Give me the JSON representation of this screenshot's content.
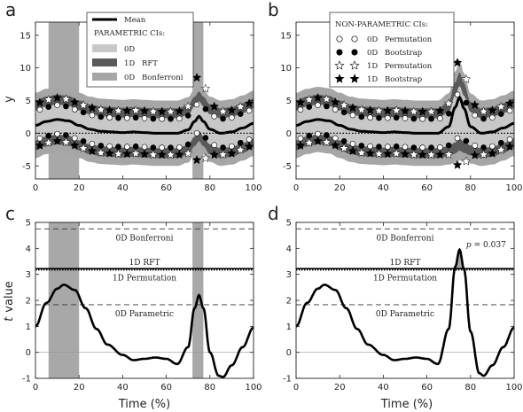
{
  "panels": {
    "a": "a",
    "b": "b",
    "c": "c",
    "d": "d"
  },
  "axes": {
    "top_ylabel": "y",
    "bottom_ylabel_t": "t",
    "bottom_ylabel_rest": "value",
    "xlabel": "Time (%)"
  },
  "legend_a": {
    "mean": "Mean",
    "header": "PARAMETRIC CIs:",
    "items": [
      {
        "tag": "0D",
        "label": ""
      },
      {
        "tag": "1D",
        "label": "RFT"
      },
      {
        "tag": "0D",
        "label": "Bonferroni"
      }
    ]
  },
  "legend_b": {
    "header": "NON-PARAMETRIC CIs:",
    "items": [
      {
        "tag": "0D",
        "label": "Permutation"
      },
      {
        "tag": "0D",
        "label": "Bootstrap"
      },
      {
        "tag": "1D",
        "label": "Permutation"
      },
      {
        "tag": "1D",
        "label": "Bootstrap"
      }
    ]
  },
  "annotations_c": {
    "bonferroni": "0D Bonferroni",
    "rft": "1D RFT",
    "permutation": "1D Permutation",
    "parametric": "0D Parametric"
  },
  "annotations_d": {
    "bonferroni": "0D Bonferroni",
    "rft": "1D RFT",
    "permutation": "1D Permutation",
    "parametric": "0D Parametric",
    "p_label": "p",
    "p_value": "= 0.037"
  },
  "colors": {
    "band_light": "#c8c8c8",
    "band_dark": "#5a5a5a",
    "band_mid": "#a6a6a6",
    "curve": "#000000",
    "shade": "#a8a8a8"
  },
  "chart_data": [
    {
      "type": "line",
      "panel": "a",
      "x": [
        0,
        5,
        10,
        15,
        20,
        25,
        30,
        35,
        40,
        45,
        50,
        55,
        60,
        65,
        70,
        73,
        75,
        77,
        80,
        85,
        90,
        95,
        100
      ],
      "mean": [
        1.2,
        1.8,
        2.1,
        1.9,
        1.2,
        0.6,
        0.3,
        0.2,
        0.1,
        0.2,
        0.1,
        0.0,
        0.0,
        0.0,
        0.5,
        1.8,
        2.6,
        1.8,
        0.6,
        0.0,
        0.2,
        0.8,
        1.5
      ],
      "ci_0d_halfwidth": 2.3,
      "ci_1d_rft_halfwidth": 3.8,
      "ci_0d_bonferroni_halfwidth": 5.0,
      "ci_1d_bootstrap_offset": [
        3.3,
        3.3,
        3.3,
        3.3,
        3.3,
        3.3,
        3.3,
        3.3,
        3.3,
        3.3,
        3.3,
        3.3,
        3.3,
        3.3,
        3.6,
        5.8,
        6.8,
        5.8,
        3.9,
        3.3,
        3.3,
        3.3,
        3.3
      ],
      "significant_regions": [
        [
          6,
          20
        ],
        [
          72,
          77
        ]
      ],
      "xlim": [
        0,
        100
      ],
      "ylim": [
        -7,
        17
      ],
      "yticks": [
        -5,
        0,
        5,
        10,
        15
      ],
      "xticks": [
        0,
        20,
        40,
        60,
        80,
        100
      ]
    },
    {
      "type": "line",
      "panel": "b",
      "x": [
        0,
        5,
        10,
        15,
        20,
        25,
        30,
        35,
        40,
        45,
        50,
        55,
        60,
        65,
        70,
        73,
        75,
        77,
        80,
        85,
        90,
        95,
        100
      ],
      "mean": [
        1.2,
        1.8,
        2.1,
        1.9,
        1.2,
        0.6,
        0.3,
        0.2,
        0.1,
        0.2,
        0.1,
        0.0,
        0.0,
        0.0,
        1.0,
        4.0,
        5.5,
        3.8,
        1.0,
        0.0,
        0.2,
        0.8,
        1.5
      ],
      "bootstrap_upper_peak": 10.5,
      "xlim": [
        0,
        100
      ],
      "ylim": [
        -7,
        17
      ],
      "yticks": [
        -5,
        0,
        5,
        10,
        15
      ],
      "xticks": [
        0,
        20,
        40,
        60,
        80,
        100
      ]
    },
    {
      "type": "line",
      "panel": "c",
      "x": [
        0,
        5,
        10,
        13,
        18,
        23,
        28,
        33,
        40,
        45,
        50,
        55,
        60,
        65,
        70,
        73,
        75,
        77,
        80,
        84,
        86,
        90,
        95,
        100
      ],
      "y": [
        1.0,
        1.9,
        2.45,
        2.6,
        2.4,
        1.7,
        0.9,
        0.3,
        -0.1,
        -0.3,
        -0.25,
        -0.2,
        -0.25,
        -0.45,
        0.2,
        1.7,
        2.2,
        1.7,
        0.0,
        -0.9,
        -0.95,
        -0.5,
        0.2,
        0.95
      ],
      "thresholds": {
        "bonferroni": 4.75,
        "rft": 3.22,
        "permutation": 3.17,
        "parametric": 1.83
      },
      "significant_regions": [
        [
          6,
          20
        ],
        [
          72,
          77
        ]
      ],
      "xlim": [
        0,
        100
      ],
      "ylim": [
        -1,
        5
      ],
      "yticks": [
        -1,
        0,
        1,
        2,
        3,
        4,
        5
      ],
      "xticks": [
        0,
        20,
        40,
        60,
        80,
        100
      ]
    },
    {
      "type": "line",
      "panel": "d",
      "x": [
        0,
        5,
        10,
        13,
        18,
        23,
        28,
        33,
        40,
        45,
        50,
        55,
        60,
        65,
        70,
        73,
        75,
        77,
        80,
        84,
        86,
        90,
        95,
        100
      ],
      "y": [
        1.0,
        1.9,
        2.45,
        2.6,
        2.4,
        1.7,
        0.9,
        0.3,
        -0.1,
        -0.3,
        -0.25,
        -0.2,
        -0.25,
        -0.45,
        0.9,
        3.3,
        3.95,
        3.2,
        0.8,
        -0.8,
        -0.9,
        -0.5,
        0.2,
        0.95
      ],
      "thresholds": {
        "bonferroni": 4.75,
        "rft": 3.22,
        "permutation": 3.17,
        "parametric": 1.83
      },
      "cluster_p": 0.037,
      "xlim": [
        0,
        100
      ],
      "ylim": [
        -1,
        5
      ],
      "yticks": [
        -1,
        0,
        1,
        2,
        3,
        4,
        5
      ],
      "xticks": [
        0,
        20,
        40,
        60,
        80,
        100
      ]
    }
  ]
}
